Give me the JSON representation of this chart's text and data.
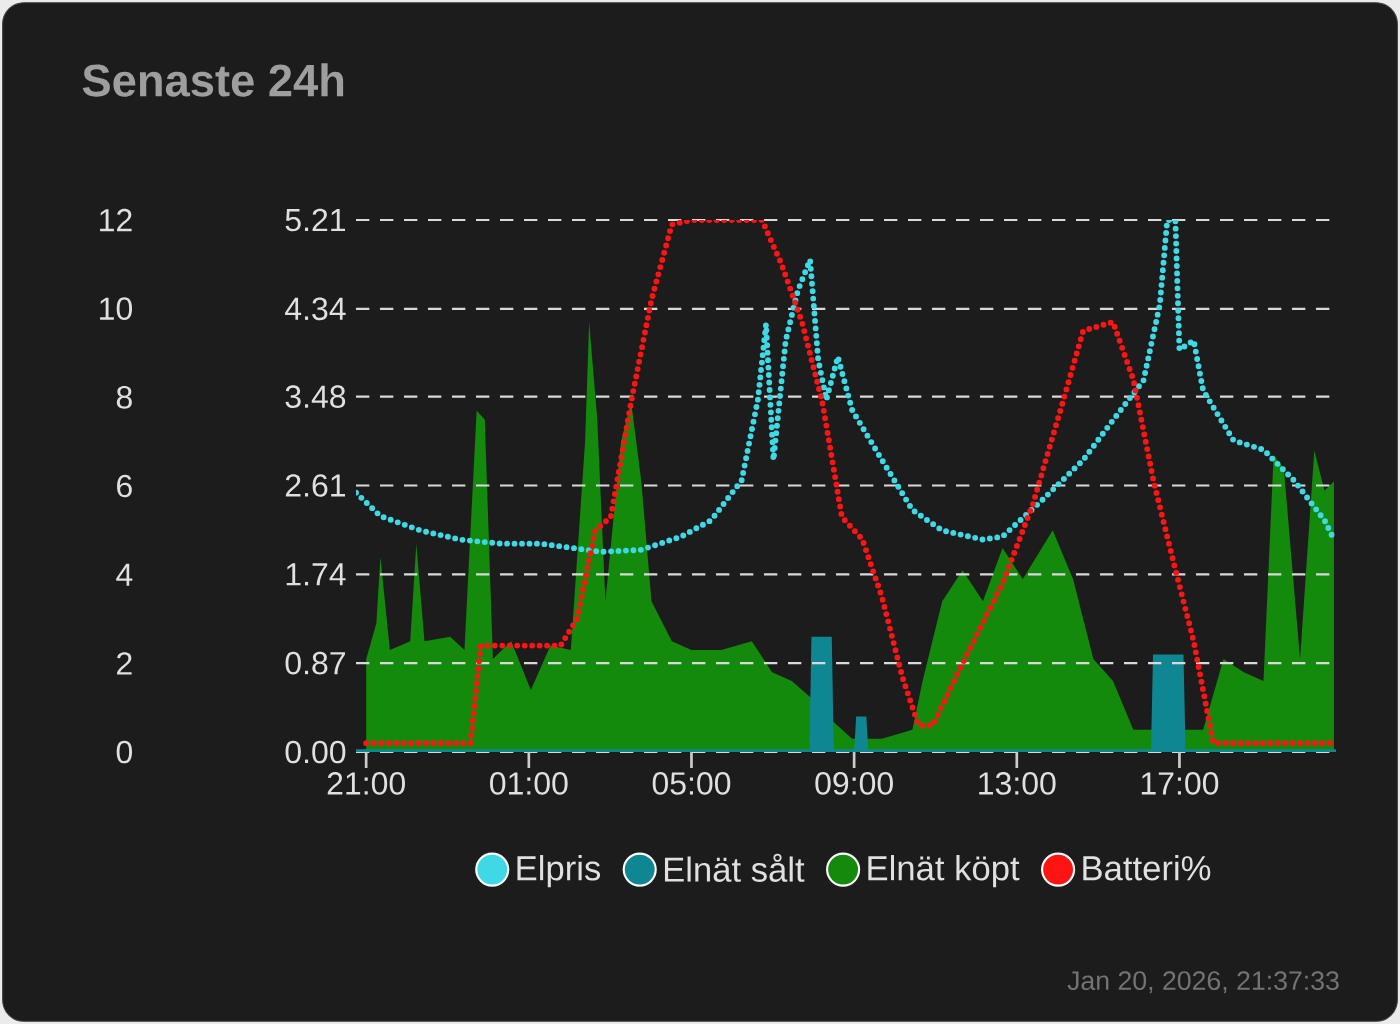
{
  "chart_data": {
    "type": "area",
    "title": "Senaste 24h",
    "xlim": [
      "2026-01-19T20:45",
      "2026-01-20T20:51"
    ],
    "xticks": [
      {
        "value": "2026-01-19T21:00",
        "label": "21:00"
      },
      {
        "value": "2026-01-20T01:00",
        "label": "01:00"
      },
      {
        "value": "2026-01-20T05:00",
        "label": "05:00"
      },
      {
        "value": "2026-01-20T09:00",
        "label": "09:00"
      },
      {
        "value": "2026-01-20T13:00",
        "label": "13:00"
      },
      {
        "value": "2026-01-20T17:00",
        "label": "17:00"
      }
    ],
    "ylim": [
      0,
      12
    ],
    "yticks": [
      0,
      2,
      4,
      6,
      8,
      10,
      12
    ],
    "y2lim": [
      0,
      5.21
    ],
    "y2ticks": [
      {
        "value": 0,
        "label": "0.00"
      },
      0.87,
      1.74,
      2.61,
      3.48,
      4.34,
      5.21
    ],
    "grid": "y",
    "legend": "bottom",
    "marker": "none",
    "annotations": [
      "Jan 20, 2026, 21:37:33"
    ],
    "series": [
      {
        "name": "Elpris",
        "type": "line",
        "axis": "y2",
        "line_style": "dotted",
        "color": "#3fd9e6",
        "x": [
          "2026-01-19T20:45",
          "2026-01-19T21:21",
          "2026-01-19T22:20",
          "2026-01-19T23:19",
          "2026-01-20T00:19",
          "2026-01-20T01:18",
          "2026-01-20T02:47",
          "2026-01-20T03:46",
          "2026-01-20T04:45",
          "2026-01-20T05:29",
          "2026-01-20T06:14",
          "2026-01-20T06:38",
          "2026-01-20T06:50",
          "2026-01-20T07:01",
          "2026-01-20T07:19",
          "2026-01-20T07:37",
          "2026-01-20T07:55",
          "2026-01-20T08:07",
          "2026-01-20T08:19",
          "2026-01-20T08:36",
          "2026-01-20T08:57",
          "2026-01-20T09:41",
          "2026-01-20T10:26",
          "2026-01-20T11:10",
          "2026-01-20T12:10",
          "2026-01-20T12:39",
          "2026-01-20T13:38",
          "2026-01-20T14:38",
          "2026-01-20T15:22",
          "2026-01-20T16:07",
          "2026-01-20T16:31",
          "2026-01-20T16:42",
          "2026-01-20T16:54",
          "2026-01-20T17:00",
          "2026-01-20T17:21",
          "2026-01-20T17:35",
          "2026-01-20T18:20",
          "2026-01-20T19:04",
          "2026-01-20T19:49",
          "2026-01-20T20:34",
          "2026-01-20T20:48"
        ],
        "values": [
          2.54,
          2.31,
          2.17,
          2.08,
          2.04,
          2.04,
          1.96,
          1.98,
          2.11,
          2.27,
          2.66,
          3.45,
          4.19,
          2.86,
          4.03,
          4.52,
          4.82,
          3.84,
          3.45,
          3.87,
          3.35,
          2.86,
          2.37,
          2.17,
          2.08,
          2.11,
          2.47,
          2.86,
          3.25,
          3.64,
          4.38,
          5.21,
          5.21,
          3.94,
          4.03,
          3.54,
          3.05,
          2.96,
          2.66,
          2.27,
          2.08
        ]
      },
      {
        "name": "Elnät sålt",
        "axis": "y",
        "color": "#0f8793",
        "x": [
          "2026-01-19T20:45",
          "2026-01-20T07:54",
          "2026-01-20T07:57",
          "2026-01-20T08:27",
          "2026-01-20T08:30",
          "2026-01-20T09:00",
          "2026-01-20T09:03",
          "2026-01-20T09:18",
          "2026-01-20T09:21",
          "2026-01-20T16:18",
          "2026-01-20T16:21",
          "2026-01-20T17:06",
          "2026-01-20T17:09",
          "2026-01-20T20:51"
        ],
        "values": [
          0,
          0,
          2.6,
          2.6,
          0,
          0,
          0.8,
          0.8,
          0,
          0,
          2.2,
          2.2,
          0,
          0
        ]
      },
      {
        "name": "Elnät köpt",
        "axis": "y",
        "color": "#138a0c",
        "x": [
          "2026-01-19T21:00",
          "2026-01-19T21:15",
          "2026-01-19T21:21",
          "2026-01-19T21:35",
          "2026-01-19T22:05",
          "2026-01-19T22:14",
          "2026-01-19T22:26",
          "2026-01-19T23:04",
          "2026-01-19T23:25",
          "2026-01-19T23:43",
          "2026-01-19T23:55",
          "2026-01-20T00:07",
          "2026-01-20T00:34",
          "2026-01-20T01:03",
          "2026-01-20T01:32",
          "2026-01-20T02:02",
          "2026-01-20T02:23",
          "2026-01-20T02:29",
          "2026-01-20T02:41",
          "2026-01-20T02:53",
          "2026-01-20T03:16",
          "2026-01-20T03:31",
          "2026-01-20T03:46",
          "2026-01-20T04:01",
          "2026-01-20T04:31",
          "2026-01-20T05:00",
          "2026-01-20T05:44",
          "2026-01-20T06:29",
          "2026-01-20T06:59",
          "2026-01-20T07:28",
          "2026-01-20T07:58",
          "2026-01-20T08:28",
          "2026-01-20T08:57",
          "2026-01-20T09:41",
          "2026-01-20T10:26",
          "2026-01-20T10:41",
          "2026-01-20T11:10",
          "2026-01-20T11:40",
          "2026-01-20T12:10",
          "2026-01-20T12:39",
          "2026-01-20T13:09",
          "2026-01-20T13:53",
          "2026-01-20T14:23",
          "2026-01-20T14:53",
          "2026-01-20T15:22",
          "2026-01-20T15:52",
          "2026-01-20T16:36",
          "2026-01-20T17:35",
          "2026-01-20T18:05",
          "2026-01-20T18:35",
          "2026-01-20T19:04",
          "2026-01-20T19:19",
          "2026-01-20T19:34",
          "2026-01-20T19:58",
          "2026-01-20T20:19",
          "2026-01-20T20:34",
          "2026-01-20T20:48"
        ],
        "values": [
          2.1,
          2.9,
          4.4,
          2.3,
          2.5,
          4.7,
          2.5,
          2.6,
          2.3,
          7.7,
          7.5,
          2.1,
          2.5,
          1.4,
          2.4,
          2.3,
          7.0,
          9.7,
          7.5,
          3.4,
          7.0,
          7.9,
          6.1,
          3.4,
          2.5,
          2.3,
          2.3,
          2.5,
          1.8,
          1.6,
          1.2,
          0.7,
          0.3,
          0.3,
          0.5,
          1.6,
          3.4,
          4.1,
          3.4,
          4.6,
          3.9,
          5.0,
          3.9,
          2.1,
          1.6,
          0.5,
          null,
          0.5,
          2.1,
          1.8,
          1.6,
          6.7,
          6.4,
          2.1,
          6.8,
          5.9,
          6.1
        ]
      },
      {
        "name": "Batteri%",
        "type": "line",
        "axis": "y",
        "line_style": "dotted",
        "color": "#ff1414",
        "x": [
          "2026-01-19T21:00",
          "2026-01-19T23:34",
          "2026-01-19T23:49",
          "2026-01-20T01:47",
          "2026-01-20T02:11",
          "2026-01-20T02:38",
          "2026-01-20T03:01",
          "2026-01-20T03:31",
          "2026-01-20T04:01",
          "2026-01-20T04:31",
          "2026-01-20T05:00",
          "2026-01-20T06:44",
          "2026-01-20T07:13",
          "2026-01-20T07:43",
          "2026-01-20T08:13",
          "2026-01-20T08:42",
          "2026-01-20T09:12",
          "2026-01-20T09:41",
          "2026-01-20T10:11",
          "2026-01-20T10:35",
          "2026-01-20T10:56",
          "2026-01-20T11:40",
          "2026-01-20T12:39",
          "2026-01-20T13:24",
          "2026-01-20T14:08",
          "2026-01-20T14:38",
          "2026-01-20T15:22",
          "2026-01-20T15:52",
          "2026-01-20T16:22",
          "2026-01-20T16:51",
          "2026-01-20T17:21",
          "2026-01-20T17:50",
          "2026-01-20T18:20",
          "2026-01-20T20:04",
          "2026-01-20T20:48"
        ],
        "values": [
          0.2,
          0.2,
          2.4,
          2.4,
          3.0,
          5.0,
          5.3,
          7.9,
          10.2,
          11.9,
          12,
          12,
          11.0,
          9.7,
          7.9,
          5.3,
          4.8,
          3.5,
          1.7,
          0.6,
          0.6,
          2.0,
          3.8,
          5.6,
          7.9,
          9.5,
          9.7,
          8.4,
          6.1,
          4.3,
          2.5,
          0.2,
          0.2,
          0.2,
          0.2
        ]
      }
    ]
  }
}
